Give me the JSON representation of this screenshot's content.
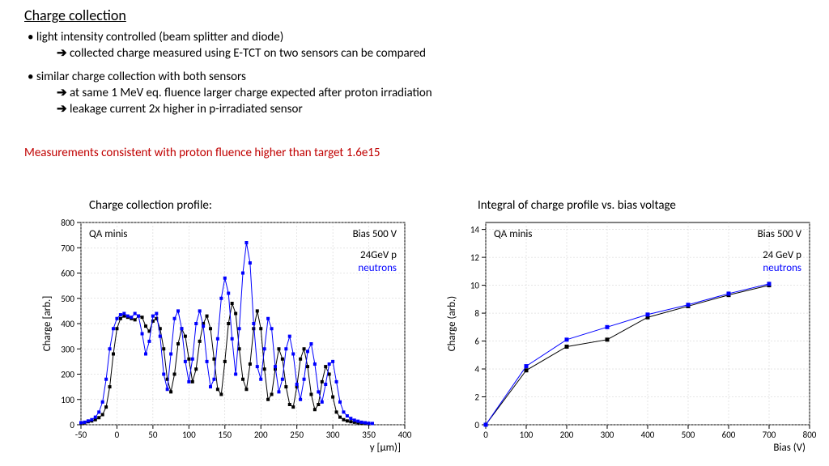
{
  "title": "Charge collection",
  "bullets": [
    {
      "lead": "light intensity controlled (beam splitter and diode)",
      "subs": [
        "collected charge measured using E-TCT on two sensors can be compared"
      ]
    },
    {
      "lead": "similar charge collection with both sensors",
      "subs": [
        "at same 1 MeV eq. fluence larger charge expected after proton irradiation",
        "leakage current 2x higher in p-irradiated sensor"
      ]
    }
  ],
  "redline": "Measurements  consistent with proton fluence higher than target 1.6e15",
  "left_chart": {
    "title": "Charge collection profile:",
    "annot_left": "QA minis",
    "annot_right": "Bias 500 V",
    "legend_black": "24GeV p",
    "legend_blue": "neutrons",
    "xlabel": "y [µm)]",
    "ylabel": "Charge [arb.]",
    "xlim": [
      -50,
      400
    ],
    "ylim": [
      0,
      800
    ],
    "xticks": [
      -50,
      0,
      50,
      100,
      150,
      200,
      250,
      300,
      350,
      400
    ],
    "yticks": [
      0,
      100,
      200,
      300,
      400,
      500,
      600,
      700,
      800
    ],
    "axis_color": "#000000",
    "grid_color": "#cccccc",
    "tick_fs": 11,
    "label_fs": 13,
    "annot_fs": 13,
    "black": "#000000",
    "blue": "#0000ff",
    "marker_size": 2.0,
    "line_w": 1,
    "series_black": [
      [
        -50,
        5
      ],
      [
        -45,
        8
      ],
      [
        -40,
        12
      ],
      [
        -35,
        15
      ],
      [
        -30,
        20
      ],
      [
        -25,
        28
      ],
      [
        -20,
        40
      ],
      [
        -15,
        70
      ],
      [
        -10,
        150
      ],
      [
        -5,
        280
      ],
      [
        0,
        380
      ],
      [
        5,
        420
      ],
      [
        10,
        430
      ],
      [
        15,
        425
      ],
      [
        20,
        420
      ],
      [
        25,
        415
      ],
      [
        30,
        430
      ],
      [
        35,
        425
      ],
      [
        40,
        390
      ],
      [
        45,
        370
      ],
      [
        50,
        410
      ],
      [
        55,
        420
      ],
      [
        60,
        380
      ],
      [
        65,
        300
      ],
      [
        70,
        180
      ],
      [
        75,
        130
      ],
      [
        80,
        200
      ],
      [
        85,
        320
      ],
      [
        90,
        380
      ],
      [
        95,
        350
      ],
      [
        100,
        260
      ],
      [
        105,
        170
      ],
      [
        110,
        220
      ],
      [
        115,
        330
      ],
      [
        120,
        400
      ],
      [
        125,
        430
      ],
      [
        130,
        380
      ],
      [
        135,
        260
      ],
      [
        140,
        140
      ],
      [
        145,
        120
      ],
      [
        150,
        250
      ],
      [
        155,
        400
      ],
      [
        160,
        480
      ],
      [
        165,
        440
      ],
      [
        170,
        300
      ],
      [
        175,
        180
      ],
      [
        180,
        140
      ],
      [
        185,
        240
      ],
      [
        190,
        380
      ],
      [
        195,
        450
      ],
      [
        200,
        380
      ],
      [
        205,
        220
      ],
      [
        210,
        100
      ],
      [
        215,
        120
      ],
      [
        220,
        220
      ],
      [
        225,
        300
      ],
      [
        230,
        260
      ],
      [
        235,
        150
      ],
      [
        240,
        80
      ],
      [
        245,
        70
      ],
      [
        250,
        150
      ],
      [
        255,
        260
      ],
      [
        260,
        300
      ],
      [
        265,
        230
      ],
      [
        270,
        120
      ],
      [
        275,
        60
      ],
      [
        280,
        80
      ],
      [
        285,
        170
      ],
      [
        290,
        230
      ],
      [
        295,
        200
      ],
      [
        300,
        110
      ],
      [
        305,
        50
      ],
      [
        310,
        30
      ],
      [
        315,
        20
      ],
      [
        320,
        15
      ],
      [
        325,
        12
      ],
      [
        330,
        10
      ],
      [
        335,
        8
      ],
      [
        340,
        6
      ],
      [
        345,
        5
      ],
      [
        350,
        4
      ]
    ],
    "series_blue": [
      [
        -50,
        8
      ],
      [
        -45,
        10
      ],
      [
        -40,
        15
      ],
      [
        -35,
        20
      ],
      [
        -30,
        30
      ],
      [
        -25,
        50
      ],
      [
        -20,
        90
      ],
      [
        -15,
        180
      ],
      [
        -10,
        300
      ],
      [
        -5,
        380
      ],
      [
        0,
        420
      ],
      [
        5,
        435
      ],
      [
        10,
        440
      ],
      [
        15,
        430
      ],
      [
        20,
        425
      ],
      [
        25,
        440
      ],
      [
        30,
        430
      ],
      [
        35,
        360
      ],
      [
        40,
        280
      ],
      [
        45,
        330
      ],
      [
        50,
        430
      ],
      [
        55,
        440
      ],
      [
        60,
        350
      ],
      [
        65,
        200
      ],
      [
        70,
        140
      ],
      [
        75,
        280
      ],
      [
        80,
        420
      ],
      [
        85,
        450
      ],
      [
        90,
        380
      ],
      [
        95,
        250
      ],
      [
        100,
        170
      ],
      [
        105,
        260
      ],
      [
        110,
        400
      ],
      [
        115,
        450
      ],
      [
        120,
        390
      ],
      [
        125,
        250
      ],
      [
        130,
        150
      ],
      [
        135,
        180
      ],
      [
        140,
        340
      ],
      [
        145,
        500
      ],
      [
        150,
        580
      ],
      [
        155,
        520
      ],
      [
        160,
        340
      ],
      [
        165,
        200
      ],
      [
        170,
        380
      ],
      [
        175,
        600
      ],
      [
        180,
        720
      ],
      [
        185,
        640
      ],
      [
        190,
        400
      ],
      [
        195,
        230
      ],
      [
        200,
        180
      ],
      [
        205,
        300
      ],
      [
        210,
        420
      ],
      [
        215,
        380
      ],
      [
        220,
        230
      ],
      [
        225,
        130
      ],
      [
        230,
        180
      ],
      [
        235,
        300
      ],
      [
        240,
        350
      ],
      [
        245,
        280
      ],
      [
        250,
        160
      ],
      [
        255,
        100
      ],
      [
        260,
        180
      ],
      [
        265,
        290
      ],
      [
        270,
        320
      ],
      [
        275,
        240
      ],
      [
        280,
        130
      ],
      [
        285,
        90
      ],
      [
        290,
        160
      ],
      [
        295,
        240
      ],
      [
        300,
        250
      ],
      [
        305,
        170
      ],
      [
        310,
        90
      ],
      [
        315,
        50
      ],
      [
        320,
        35
      ],
      [
        325,
        25
      ],
      [
        330,
        18
      ],
      [
        335,
        14
      ],
      [
        340,
        10
      ],
      [
        345,
        8
      ],
      [
        350,
        6
      ],
      [
        355,
        5
      ]
    ]
  },
  "right_chart": {
    "title": "Integral of charge profile vs. bias voltage",
    "annot_left": "QA minis",
    "annot_right": "Bias 500 V",
    "legend_black": "24 GeV p",
    "legend_blue": "neutrons",
    "xlabel": "Bias (V)",
    "ylabel": "Charge (arb.)",
    "xlim": [
      0,
      800
    ],
    "ylim": [
      0,
      14.5
    ],
    "xticks": [
      0,
      100,
      200,
      300,
      400,
      500,
      600,
      700,
      800
    ],
    "yticks": [
      0,
      2,
      4,
      6,
      8,
      10,
      12,
      14
    ],
    "axis_color": "#000000",
    "grid_color": "#cccccc",
    "tick_fs": 11,
    "label_fs": 13,
    "annot_fs": 13,
    "black": "#000000",
    "blue": "#0000ff",
    "marker_size": 2.5,
    "line_w": 1,
    "series_black": [
      [
        0,
        0
      ],
      [
        100,
        3.9
      ],
      [
        200,
        5.6
      ],
      [
        300,
        6.1
      ],
      [
        400,
        7.7
      ],
      [
        500,
        8.5
      ],
      [
        600,
        9.3
      ],
      [
        700,
        10.0
      ]
    ],
    "series_blue": [
      [
        0,
        0
      ],
      [
        100,
        4.2
      ],
      [
        200,
        6.1
      ],
      [
        300,
        7.0
      ],
      [
        400,
        7.9
      ],
      [
        500,
        8.6
      ],
      [
        600,
        9.4
      ],
      [
        700,
        10.1
      ]
    ]
  }
}
